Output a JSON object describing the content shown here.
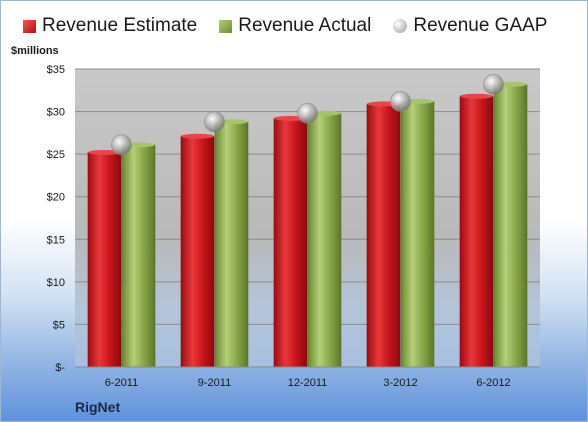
{
  "legend": {
    "estimate": "Revenue Estimate",
    "actual": "Revenue Actual",
    "gaap": "Revenue GAAP"
  },
  "unit_label": "$millions",
  "company": "RigNet",
  "colors": {
    "estimate": "#c8161c",
    "actual": "#8aa84a",
    "gaap": "#b0b0b0"
  },
  "chart_data": {
    "type": "bar",
    "categories": [
      "6-2011",
      "9-2011",
      "12-2011",
      "3-2012",
      "6-2012"
    ],
    "series": [
      {
        "name": "Revenue Estimate",
        "values": [
          25.2,
          27.1,
          29.2,
          30.9,
          31.8
        ]
      },
      {
        "name": "Revenue Actual",
        "values": [
          26.1,
          28.8,
          29.8,
          31.2,
          33.2
        ]
      },
      {
        "name": "Revenue GAAP",
        "values": [
          26.1,
          28.8,
          29.8,
          31.2,
          33.2
        ]
      }
    ],
    "ylim": [
      0,
      35
    ],
    "yticks": [
      0,
      5,
      10,
      15,
      20,
      25,
      30,
      35
    ],
    "ytick_labels": [
      "$-",
      "$5",
      "$10",
      "$15",
      "$20",
      "$25",
      "$30",
      "$35"
    ],
    "grid": true,
    "legend_position": "top"
  }
}
